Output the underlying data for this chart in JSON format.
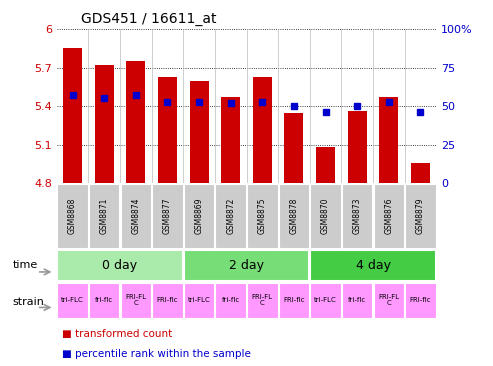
{
  "title": "GDS451 / 16611_at",
  "samples": [
    "GSM8868",
    "GSM8871",
    "GSM8874",
    "GSM8877",
    "GSM8869",
    "GSM8872",
    "GSM8875",
    "GSM8878",
    "GSM8870",
    "GSM8873",
    "GSM8876",
    "GSM8879"
  ],
  "transformed_counts": [
    5.85,
    5.72,
    5.75,
    5.63,
    5.6,
    5.47,
    5.63,
    5.35,
    5.08,
    5.36,
    5.47,
    4.96
  ],
  "percentile_ranks": [
    57,
    55,
    57,
    53,
    53,
    52,
    53,
    50,
    46,
    50,
    53,
    46
  ],
  "ylim_left": [
    4.8,
    6.0
  ],
  "ylim_right": [
    0,
    100
  ],
  "yticks_left": [
    4.8,
    5.1,
    5.4,
    5.7,
    6.0
  ],
  "yticks_right": [
    0,
    25,
    50,
    75,
    100
  ],
  "ytick_labels_left": [
    "4.8",
    "5.1",
    "5.4",
    "5.7",
    "6"
  ],
  "ytick_labels_right": [
    "0",
    "25",
    "50",
    "75",
    "100%"
  ],
  "bar_color": "#cc0000",
  "dot_color": "#0000cc",
  "bar_bottom": 4.8,
  "time_groups": [
    {
      "label": "0 day",
      "start": 0,
      "end": 3,
      "color": "#aaeaaa"
    },
    {
      "label": "2 day",
      "start": 4,
      "end": 7,
      "color": "#77dd77"
    },
    {
      "label": "4 day",
      "start": 8,
      "end": 11,
      "color": "#44cc44"
    }
  ],
  "strain_labels": [
    "tri-FLC",
    "fri-flc",
    "FRI-FLC",
    "FRI-flc",
    "tri-FLC",
    "fri-flc",
    "FRI-FLC",
    "FRI-flc",
    "tri-FLC",
    "fri-flc",
    "FRI-FLC",
    "FRI-flc"
  ],
  "tick_bg_color": "#cccccc",
  "pink": "#ff99ff",
  "background_color": "#ffffff",
  "label_time": "time",
  "label_strain": "strain",
  "legend_red": "transformed count",
  "legend_blue": "percentile rank within the sample",
  "arrow_color": "#999999"
}
